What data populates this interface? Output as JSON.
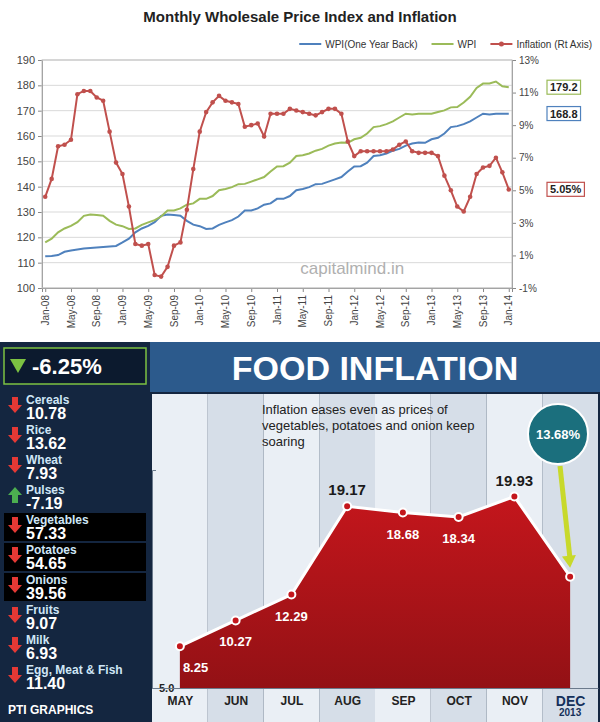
{
  "chart_data": [
    {
      "type": "line",
      "title": "Monthly Wholesale Price Index and Inflation",
      "categories": [
        "Jan-08",
        null,
        null,
        null,
        "May-08",
        null,
        null,
        null,
        "Sep-08",
        null,
        null,
        null,
        "Jan-09",
        null,
        null,
        null,
        "May-09",
        null,
        null,
        null,
        "Sep-09",
        null,
        null,
        null,
        "Jan-10",
        null,
        null,
        null,
        "May-10",
        null,
        null,
        null,
        "Sep-10",
        null,
        null,
        null,
        "Jan-11",
        null,
        null,
        null,
        "May-11",
        null,
        null,
        null,
        "Sep-11",
        null,
        null,
        null,
        "Jan-12",
        null,
        null,
        null,
        "May-12",
        null,
        null,
        null,
        "Sep-12",
        null,
        null,
        null,
        "Jan-13",
        null,
        null,
        null,
        "May-13",
        null,
        null,
        null,
        "Sep-13",
        null,
        null,
        null,
        "Jan-14"
      ],
      "series": [
        {
          "name": "WPI(One Year Back)",
          "color": "#4f81bd",
          "values": [
            112.5,
            112.6,
            113,
            114.3,
            114.8,
            115.2,
            115.6,
            115.8,
            116,
            116.2,
            116.4,
            116.6,
            118,
            119.5,
            122,
            123.5,
            124.5,
            126,
            128.5,
            129,
            128.8,
            128.5,
            126.5,
            125,
            124.4,
            123.3,
            123.5,
            124.9,
            125.9,
            126.8,
            128.2,
            130.6,
            130.6,
            131.4,
            132.9,
            133.4,
            135.2,
            135.2,
            136.3,
            138.6,
            139.1,
            139.8,
            141,
            141.1,
            142,
            142.9,
            143.8,
            146,
            148,
            148.1,
            149.5,
            152.1,
            152.4,
            153.1,
            154.2,
            154.9,
            156.2,
            157,
            157.4,
            157.3,
            158.7,
            159.3,
            161,
            163.5,
            163.9,
            164.7,
            165.8,
            167.3,
            168.8,
            168.5,
            168.8,
            168.8,
            168.8
          ],
          "value_labels": [
            null,
            null,
            null,
            null,
            null,
            null,
            null,
            null,
            null,
            null,
            null,
            null,
            null,
            null,
            null,
            null,
            null,
            null,
            null,
            null,
            null,
            null,
            null,
            null,
            null,
            null,
            null,
            null,
            null,
            null,
            null,
            null,
            null,
            null,
            null,
            null,
            null,
            null,
            null,
            null,
            null,
            null,
            null,
            null,
            null,
            null,
            null,
            null,
            null,
            null,
            null,
            null,
            null,
            null,
            null,
            null,
            null,
            null,
            null,
            null,
            null,
            null,
            null,
            null,
            null,
            null,
            null,
            null,
            null,
            null,
            null,
            null,
            "168.8"
          ]
        },
        {
          "name": "WPI",
          "color": "#9bbb59",
          "values": [
            118,
            119.5,
            122,
            123.5,
            124.5,
            126,
            128.5,
            129,
            128.8,
            128.5,
            126.5,
            125,
            124.4,
            123.3,
            123.5,
            124.9,
            125.9,
            126.8,
            128.2,
            130.6,
            130.6,
            131.4,
            132.9,
            133.4,
            135.2,
            135.2,
            136.3,
            138.6,
            139.1,
            139.8,
            141,
            141.1,
            142,
            142.9,
            143.8,
            146,
            148,
            148.1,
            149.5,
            152.1,
            152.4,
            153.1,
            154.2,
            154.9,
            156.2,
            157,
            157.4,
            157.3,
            158.7,
            159.3,
            161,
            163.5,
            163.9,
            164.7,
            165.8,
            167.3,
            168.8,
            168.5,
            168.8,
            168.8,
            168.8,
            169.5,
            170.1,
            171.3,
            171.4,
            173.2,
            175.5,
            179,
            180.7,
            180.7,
            181.5,
            179.6,
            179.2
          ],
          "value_labels": [
            null,
            null,
            null,
            null,
            null,
            null,
            null,
            null,
            null,
            null,
            null,
            null,
            null,
            null,
            null,
            null,
            null,
            null,
            null,
            null,
            null,
            null,
            null,
            null,
            null,
            null,
            null,
            null,
            null,
            null,
            null,
            null,
            null,
            null,
            null,
            null,
            null,
            null,
            null,
            null,
            null,
            null,
            null,
            null,
            null,
            null,
            null,
            null,
            null,
            null,
            null,
            null,
            null,
            null,
            null,
            null,
            null,
            null,
            null,
            null,
            null,
            null,
            null,
            null,
            null,
            null,
            null,
            null,
            null,
            null,
            null,
            null,
            "179.2"
          ]
        },
        {
          "name": "Inflation (Rt Axis)",
          "color": "#c0504d",
          "axis": "y2",
          "marker": "circle",
          "values": [
            4.6,
            5.7,
            7.7,
            7.8,
            8.1,
            10.9,
            11.1,
            11.1,
            10.7,
            10.5,
            8.6,
            6.7,
            6.0,
            4.0,
            1.7,
            1.6,
            1.7,
            -0.2,
            -0.3,
            0.3,
            1.6,
            1.8,
            3.8,
            6.3,
            8.6,
            9.8,
            10.4,
            10.8,
            10.5,
            10.4,
            10.3,
            8.9,
            9.0,
            9.1,
            8.3,
            9.7,
            9.7,
            9.7,
            10.0,
            9.9,
            9.8,
            9.7,
            9.6,
            9.8,
            10.0,
            10.0,
            9.7,
            8.0,
            7.1,
            7.4,
            7.4,
            7.4,
            7.4,
            7.4,
            7.5,
            7.8,
            8.0,
            7.4,
            7.3,
            7.3,
            7.3,
            7.1,
            5.9,
            5.0,
            4.0,
            3.7,
            4.6,
            6.0,
            6.4,
            6.5,
            7.0,
            6.1,
            5.05
          ],
          "value_labels": [
            null,
            null,
            null,
            null,
            null,
            null,
            null,
            null,
            null,
            null,
            null,
            null,
            null,
            null,
            null,
            null,
            null,
            null,
            null,
            null,
            null,
            null,
            null,
            null,
            null,
            null,
            null,
            null,
            null,
            null,
            null,
            null,
            null,
            null,
            null,
            null,
            null,
            null,
            null,
            null,
            null,
            null,
            null,
            null,
            null,
            null,
            null,
            null,
            null,
            null,
            null,
            null,
            null,
            null,
            null,
            null,
            null,
            null,
            null,
            null,
            null,
            null,
            null,
            null,
            null,
            null,
            null,
            null,
            null,
            null,
            null,
            null,
            "5.05%"
          ]
        }
      ],
      "ylim": [
        100,
        190
      ],
      "yticks": [
        100,
        110,
        120,
        130,
        140,
        150,
        160,
        170,
        180,
        190
      ],
      "y2lim": [
        -1,
        13
      ],
      "y2ticks": [
        {
          "value": -1,
          "label": "-1%"
        },
        {
          "value": 1,
          "label": "1%"
        },
        {
          "value": 3,
          "label": "3%"
        },
        {
          "value": 5,
          "label": "5%"
        },
        {
          "value": 7,
          "label": "7%"
        },
        {
          "value": 9,
          "label": "9%"
        },
        {
          "value": 11,
          "label": "11%"
        },
        {
          "value": 13,
          "label": "13%"
        }
      ],
      "grid": true,
      "legend": "top",
      "annotation": "capitalmind.in"
    },
    {
      "type": "table",
      "title": "-6.25%",
      "categories": [
        "Cereals",
        "Rice",
        "Wheat",
        "Pulses",
        "Vegetables",
        "Potatoes",
        "Onions",
        "Fruits",
        "Milk",
        "Egg, Meat & Fish"
      ],
      "values": [
        10.78,
        13.62,
        7.93,
        -7.19,
        57.33,
        54.65,
        39.56,
        9.07,
        6.93,
        11.4
      ],
      "value_labels": [
        "10.78",
        "13.62",
        "7.93",
        "-7.19",
        "57.33",
        "54.65",
        "39.56",
        "9.07",
        "6.93",
        "11.40"
      ],
      "colors": [
        "#142640",
        "#142640",
        "#142640",
        "#142640",
        "#000000",
        "#000000",
        "#000000",
        "#142640",
        "#142640",
        "#142640"
      ]
    },
    {
      "type": "area",
      "title": "FOOD INFLATION",
      "subtitle": "Inflation eases even as prices of vegetables, potatoes and onion keep soaring",
      "categories": [
        "MAY",
        "JUN",
        "JUL",
        "AUG",
        "SEP",
        "OCT",
        "NOV",
        "DEC"
      ],
      "values": [
        8.25,
        10.27,
        12.29,
        19.17,
        18.68,
        18.34,
        19.93,
        13.68
      ],
      "value_labels": [
        "8.25",
        "10.27",
        "12.29",
        "19.17",
        "18.68",
        "18.34",
        "19.93",
        "13.68%"
      ],
      "data_labels": true,
      "color": "#c4161c",
      "ylim": [
        5,
        22
      ],
      "yticks": [
        {
          "value": 5,
          "label": "5.0"
        }
      ],
      "xlabel": "2013",
      "source": "PTI GRAPHICS"
    }
  ]
}
